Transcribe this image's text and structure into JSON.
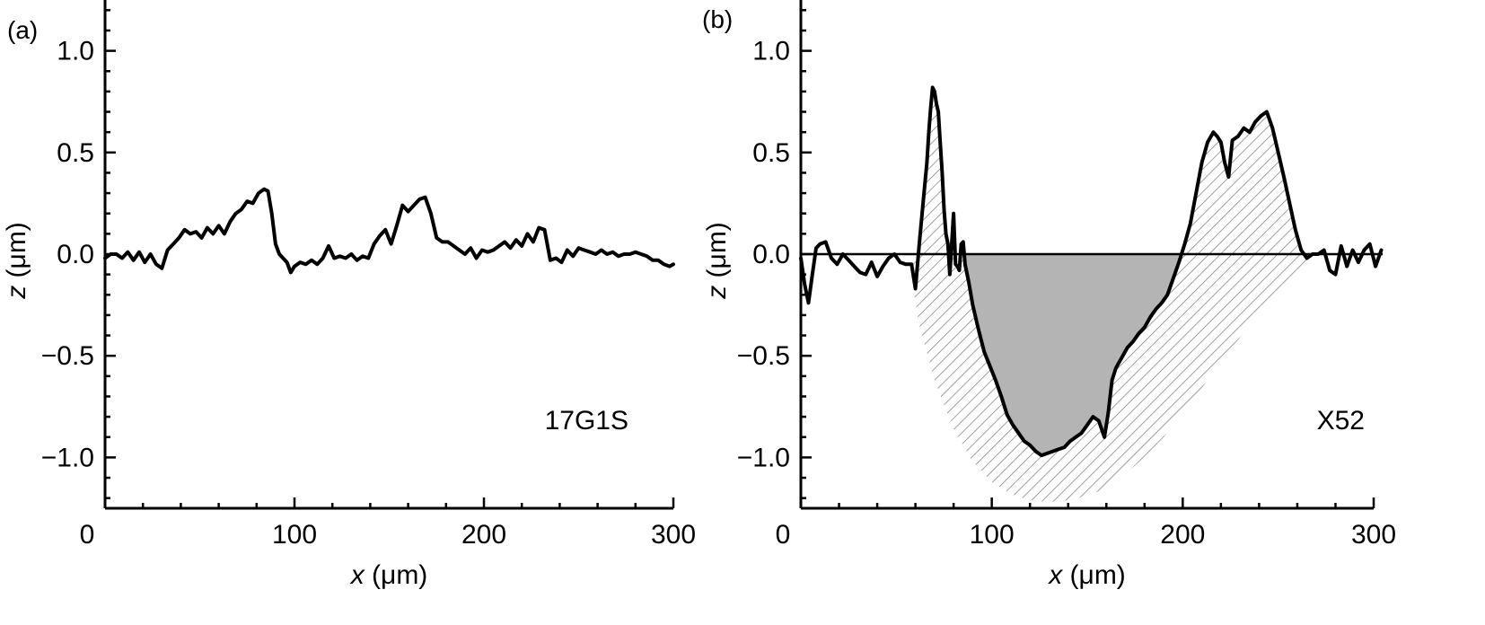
{
  "chart_data": [
    {
      "type": "line",
      "panel_label": "(a)",
      "sample_label": "17G1S",
      "xlabel_var": "x",
      "xlabel_unit": " (μm)",
      "ylabel_var": "z",
      "ylabel_unit": " (μm)",
      "xlim": [
        0,
        300
      ],
      "ylim": [
        -1.25,
        1.25
      ],
      "xticks": [
        0,
        100,
        200,
        300
      ],
      "yticks": [
        -1.0,
        -0.5,
        0.0,
        0.5,
        1.0
      ],
      "xtick_labels": [
        "0",
        "100",
        "200",
        "300"
      ],
      "ytick_labels": [
        "−1.0",
        "−0.5",
        "0.0",
        "0.5",
        "1.0"
      ],
      "grid": false,
      "series": [
        {
          "x": [
            0,
            3,
            6,
            9,
            12,
            15,
            18,
            21,
            24,
            27,
            30,
            33,
            36,
            39,
            42,
            45,
            48,
            51,
            54,
            57,
            60,
            63,
            66,
            69,
            72,
            75,
            78,
            81,
            84,
            86,
            88,
            90,
            92,
            94,
            96,
            98,
            100,
            103,
            106,
            109,
            112,
            115,
            118,
            121,
            124,
            127,
            130,
            133,
            136,
            139,
            142,
            145,
            148,
            151,
            154,
            157,
            160,
            163,
            166,
            169,
            172,
            175,
            178,
            181,
            184,
            187,
            190,
            193,
            196,
            199,
            202,
            205,
            208,
            211,
            214,
            217,
            220,
            223,
            226,
            229,
            232,
            235,
            238,
            241,
            244,
            247,
            250,
            253,
            256,
            259,
            262,
            265,
            268,
            271,
            274,
            277,
            280,
            283,
            286,
            289,
            292,
            295,
            298,
            300
          ],
          "y": [
            -0.02,
            0.0,
            0.0,
            -0.02,
            0.01,
            -0.03,
            0.01,
            -0.04,
            0.0,
            -0.05,
            -0.07,
            0.02,
            0.05,
            0.08,
            0.12,
            0.1,
            0.11,
            0.08,
            0.13,
            0.1,
            0.14,
            0.1,
            0.16,
            0.2,
            0.22,
            0.26,
            0.25,
            0.3,
            0.32,
            0.31,
            0.2,
            0.05,
            0.0,
            -0.02,
            -0.04,
            -0.09,
            -0.06,
            -0.04,
            -0.05,
            -0.03,
            -0.05,
            -0.02,
            0.04,
            -0.02,
            -0.01,
            -0.02,
            0.0,
            -0.03,
            -0.01,
            -0.02,
            0.05,
            0.09,
            0.12,
            0.05,
            0.14,
            0.24,
            0.21,
            0.24,
            0.27,
            0.28,
            0.2,
            0.08,
            0.06,
            0.06,
            0.04,
            0.02,
            0.0,
            0.03,
            -0.02,
            0.02,
            0.01,
            0.02,
            0.04,
            0.06,
            0.03,
            0.07,
            0.04,
            0.1,
            0.06,
            0.13,
            0.12,
            -0.03,
            -0.02,
            -0.04,
            0.02,
            -0.01,
            0.03,
            0.02,
            0.01,
            0.0,
            0.02,
            0.0,
            0.01,
            -0.01,
            0.0,
            0.0,
            0.01,
            0.0,
            -0.01,
            -0.03,
            -0.03,
            -0.05,
            -0.06,
            -0.05
          ]
        }
      ]
    },
    {
      "type": "line",
      "panel_label": "(b)",
      "sample_label": "X52",
      "xlabel_var": "x",
      "xlabel_unit": " (μm)",
      "ylabel_var": "z",
      "ylabel_unit": " (μm)",
      "xlim": [
        0,
        300
      ],
      "ylim": [
        -1.25,
        1.25
      ],
      "xticks": [
        0,
        100,
        200,
        300
      ],
      "yticks": [
        -1.0,
        -0.5,
        0.0,
        0.5,
        1.0
      ],
      "xtick_labels": [
        "0",
        "100",
        "200",
        "300"
      ],
      "ytick_labels": [
        "−1.0",
        "−0.5",
        "0.0",
        "0.5",
        "1.0"
      ],
      "grid": false,
      "reference_line_y": 0.0,
      "shaded_region": "area between profile and z = 0 below zero (grey)",
      "hatched_region": "pile-up above zero and extended crater outline to about z = −1.2 (diagonal hatching)",
      "series": [
        {
          "x": [
            0,
            2,
            4,
            6,
            8,
            10,
            13,
            16,
            19,
            22,
            25,
            28,
            31,
            34,
            37,
            40,
            43,
            46,
            49,
            52,
            55,
            58,
            60,
            62,
            64,
            66,
            67,
            68,
            69,
            70,
            71,
            72,
            73,
            74,
            75,
            76,
            77,
            78,
            79,
            80,
            81,
            82,
            83,
            84,
            85,
            86,
            88,
            90,
            93,
            96,
            99,
            102,
            105,
            108,
            111,
            114,
            117,
            120,
            123,
            126,
            129,
            132,
            135,
            138,
            141,
            144,
            147,
            150,
            153,
            156,
            159,
            161,
            162,
            163,
            165,
            168,
            171,
            174,
            177,
            180,
            183,
            186,
            189,
            192,
            195,
            198,
            201,
            204,
            207,
            210,
            213,
            216,
            218,
            220,
            222,
            224,
            226,
            229,
            232,
            235,
            238,
            241,
            244,
            247,
            250,
            253,
            256,
            259,
            262,
            265,
            268,
            271,
            274,
            277,
            280,
            283,
            286,
            289,
            292,
            295,
            298,
            301,
            304
          ],
          "y": [
            -0.02,
            -0.15,
            -0.24,
            -0.1,
            0.03,
            0.05,
            0.06,
            -0.02,
            -0.05,
            0.0,
            -0.03,
            -0.06,
            -0.09,
            -0.1,
            -0.04,
            -0.11,
            -0.06,
            -0.02,
            0.0,
            -0.04,
            -0.05,
            -0.05,
            -0.17,
            0.05,
            0.25,
            0.45,
            0.6,
            0.72,
            0.82,
            0.8,
            0.74,
            0.7,
            0.55,
            0.4,
            0.22,
            0.1,
            0.05,
            -0.1,
            0.05,
            0.2,
            -0.05,
            -0.06,
            -0.08,
            0.05,
            0.06,
            -0.05,
            -0.14,
            -0.25,
            -0.37,
            -0.48,
            -0.55,
            -0.62,
            -0.7,
            -0.79,
            -0.84,
            -0.88,
            -0.92,
            -0.94,
            -0.97,
            -0.99,
            -0.98,
            -0.97,
            -0.96,
            -0.95,
            -0.92,
            -0.9,
            -0.88,
            -0.84,
            -0.8,
            -0.82,
            -0.9,
            -0.78,
            -0.7,
            -0.62,
            -0.56,
            -0.51,
            -0.46,
            -0.43,
            -0.39,
            -0.36,
            -0.31,
            -0.27,
            -0.24,
            -0.2,
            -0.12,
            -0.04,
            0.05,
            0.15,
            0.3,
            0.45,
            0.55,
            0.6,
            0.58,
            0.55,
            0.45,
            0.38,
            0.56,
            0.58,
            0.62,
            0.6,
            0.65,
            0.68,
            0.7,
            0.62,
            0.5,
            0.38,
            0.25,
            0.12,
            0.02,
            -0.02,
            0.0,
            0.0,
            0.02,
            -0.08,
            -0.1,
            0.04,
            -0.06,
            0.02,
            -0.04,
            0.02,
            0.05,
            -0.06,
            0.02
          ]
        }
      ]
    }
  ]
}
